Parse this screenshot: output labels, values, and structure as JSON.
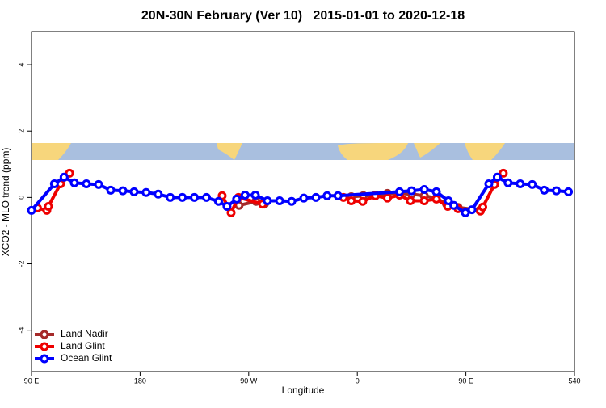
{
  "chart_data": {
    "type": "line",
    "title": "20N-30N February (Ver 10)   2015-01-01 to 2020-12-18",
    "xlabel": "Longitude",
    "ylabel": "XCO2 - MLO trend (ppm)",
    "xlim": [
      90,
      540
    ],
    "xticks": [
      {
        "value": 90,
        "label": "90 E"
      },
      180,
      {
        "value": 270,
        "label": "90 W"
      },
      {
        "value": 360,
        "label": "0"
      },
      {
        "value": 450,
        "label": "90 E"
      },
      540
    ],
    "ylim": [
      -5.25,
      5
    ],
    "yticks": [
      -4,
      -2,
      0,
      2,
      4
    ],
    "legend": "bottom-left",
    "series": [
      {
        "name": "Land Nadir",
        "color": "#a52a2a",
        "x": [
          262,
          276,
          283,
          null,
          355,
          365,
          375,
          385,
          395,
          405,
          415.5,
          425.5,
          434,
          443.5,
          461.5
        ],
        "values": [
          -0.24,
          -0.12,
          -0.2,
          null,
          0.02,
          0.05,
          0.07,
          0.12,
          0.12,
          0.1,
          0.05,
          -0.02,
          -0.2,
          -0.3,
          -0.39
        ]
      },
      {
        "name": "Land Glint",
        "color": "#ee0000",
        "x": [
          95,
          102.7,
          104,
          114,
          121.5,
          null,
          248,
          255.4,
          261.5,
          281.5,
          null,
          348.5,
          355,
          364.5,
          375,
          385,
          395,
          404,
          415.5,
          425.5,
          435,
          443.5,
          462,
          464,
          473.7,
          481
        ],
        "values": [
          -0.32,
          -0.39,
          -0.27,
          0.41,
          0.73,
          null,
          0.05,
          -0.46,
          0,
          -0.2,
          null,
          0,
          -0.1,
          -0.12,
          0.05,
          -0.02,
          0.07,
          -0.1,
          -0.1,
          -0.05,
          -0.27,
          -0.34,
          -0.41,
          -0.29,
          0.39,
          0.73
        ]
      },
      {
        "name": "Ocean Glint",
        "color": "#0000ff",
        "x": [
          90,
          109,
          117,
          125.5,
          135.5,
          145.6,
          155.6,
          165.7,
          175,
          185,
          195,
          205,
          215,
          225,
          235,
          245,
          252,
          260,
          267,
          275.5,
          285.5,
          295.6,
          305.6,
          315.7,
          325.7,
          335,
          344,
          395,
          405,
          415.5,
          425.5,
          435.5,
          440,
          449.6,
          455,
          469,
          476,
          485,
          495,
          505,
          515,
          525,
          535
        ],
        "values": [
          -0.39,
          0.41,
          0.61,
          0.44,
          0.41,
          0.39,
          0.22,
          0.2,
          0.17,
          0.15,
          0.1,
          0,
          0,
          0,
          0,
          -0.12,
          -0.27,
          -0.05,
          0.07,
          0.07,
          -0.1,
          -0.1,
          -0.12,
          -0.02,
          0,
          0.05,
          0.05,
          0.17,
          0.2,
          0.24,
          0.17,
          -0.1,
          -0.24,
          -0.46,
          -0.37,
          0.41,
          0.61,
          0.44,
          0.41,
          0.39,
          0.22,
          0.2,
          0.17
        ]
      }
    ]
  }
}
